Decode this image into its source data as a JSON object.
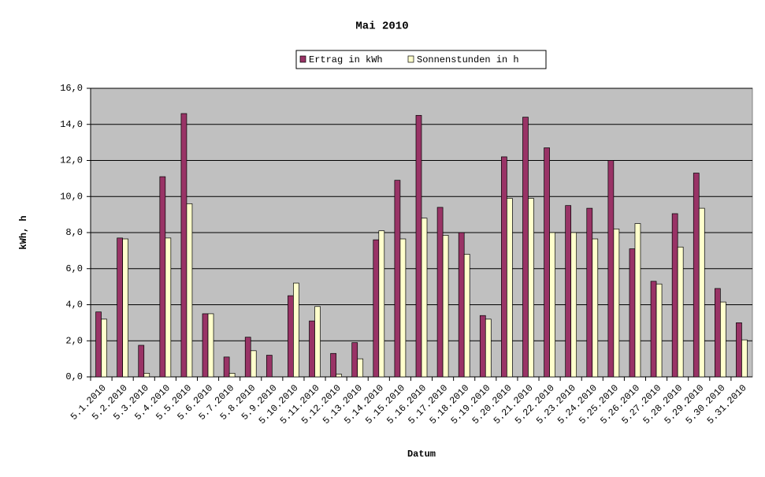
{
  "chart_data": {
    "type": "bar",
    "title": "Mai 2010",
    "x_label": "Datum",
    "y_label": "kWh, h",
    "categories": [
      "5.1.2010",
      "5.2.2010",
      "5.3.2010",
      "5.4.2010",
      "5.5.2010",
      "5.6.2010",
      "5.7.2010",
      "5.8.2010",
      "5.9.2010",
      "5.10.2010",
      "5.11.2010",
      "5.12.2010",
      "5.13.2010",
      "5.14.2010",
      "5.15.2010",
      "5.16.2010",
      "5.17.2010",
      "5.18.2010",
      "5.19.2010",
      "5.20.2010",
      "5.21.2010",
      "5.22.2010",
      "5.23.2010",
      "5.24.2010",
      "5.25.2010",
      "5.26.2010",
      "5.27.2010",
      "5.28.2010",
      "5.29.2010",
      "5.30.2010",
      "5.31.2010"
    ],
    "series": [
      {
        "name": "Ertrag in kWh",
        "color": "#993366",
        "values": [
          3.6,
          7.7,
          1.75,
          11.1,
          14.6,
          3.5,
          1.1,
          2.2,
          1.2,
          4.5,
          3.1,
          1.3,
          1.9,
          7.6,
          10.9,
          14.5,
          9.4,
          8.0,
          3.4,
          12.2,
          14.4,
          12.7,
          9.5,
          9.35,
          12.0,
          7.1,
          5.3,
          9.05,
          11.3,
          4.9,
          3.0
        ]
      },
      {
        "name": "Sonnenstunden in h",
        "color": "#ffffcc",
        "values": [
          3.2,
          7.65,
          0.2,
          7.7,
          9.6,
          3.5,
          0.2,
          1.45,
          0,
          5.2,
          3.9,
          0.15,
          1.0,
          8.1,
          7.65,
          8.8,
          7.85,
          6.8,
          3.2,
          9.9,
          9.9,
          8.0,
          8.0,
          7.65,
          8.2,
          8.5,
          5.15,
          7.2,
          9.35,
          4.15,
          2.05
        ]
      }
    ],
    "ylim": [
      0,
      16
    ],
    "yticks": [
      {
        "value": 0,
        "label": "0,0"
      },
      {
        "value": 2,
        "label": "2,0"
      },
      {
        "value": 4,
        "label": "4,0"
      },
      {
        "value": 6,
        "label": "6,0"
      },
      {
        "value": 8,
        "label": "8,0"
      },
      {
        "value": 10,
        "label": "10,0"
      },
      {
        "value": 12,
        "label": "12,0"
      },
      {
        "value": 14,
        "label": "14,0"
      },
      {
        "value": 16,
        "label": "16,0"
      }
    ],
    "grid": true,
    "plot_background": "#c0c0c0",
    "legend": "top"
  }
}
